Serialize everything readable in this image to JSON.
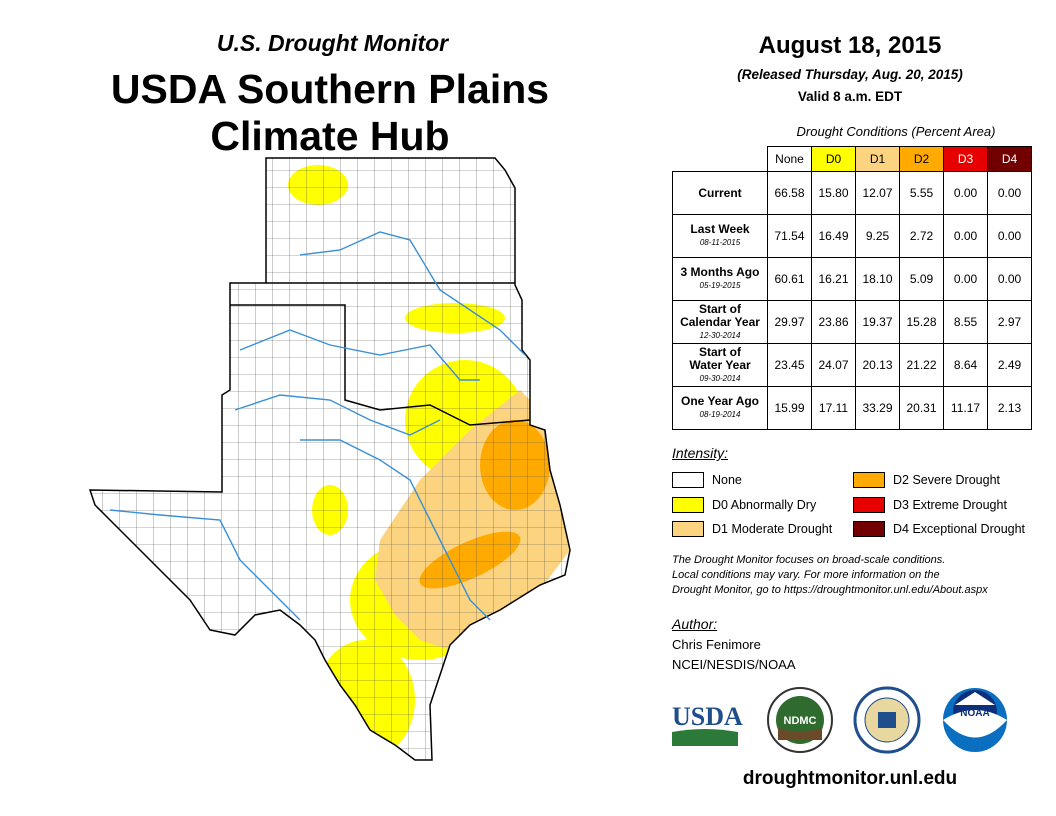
{
  "header": {
    "subtitle": "U.S. Drought Monitor",
    "title_line1": "USDA Southern Plains",
    "title_line2": "Climate Hub",
    "date": "August 18, 2015",
    "released": "(Released Thursday, Aug. 20, 2015)",
    "valid": "Valid 8 a.m. EDT"
  },
  "table": {
    "caption": "Drought Conditions (Percent Area)",
    "columns": [
      "None",
      "D0",
      "D1",
      "D2",
      "D3",
      "D4"
    ],
    "column_colors": [
      "#ffffff",
      "#ffff00",
      "#fcd37f",
      "#ffaa00",
      "#e60000",
      "#730000"
    ],
    "rows": [
      {
        "label": "Current",
        "label2": "",
        "date": "",
        "values": [
          "66.58",
          "15.80",
          "12.07",
          "5.55",
          "0.00",
          "0.00"
        ]
      },
      {
        "label": "Last Week",
        "label2": "",
        "date": "08-11-2015",
        "values": [
          "71.54",
          "16.49",
          "9.25",
          "2.72",
          "0.00",
          "0.00"
        ]
      },
      {
        "label": "3 Months Ago",
        "label2": "",
        "date": "05-19-2015",
        "values": [
          "60.61",
          "16.21",
          "18.10",
          "5.09",
          "0.00",
          "0.00"
        ]
      },
      {
        "label": "Start of",
        "label2": "Calendar Year",
        "date": "12-30-2014",
        "values": [
          "29.97",
          "23.86",
          "19.37",
          "15.28",
          "8.55",
          "2.97"
        ]
      },
      {
        "label": "Start of",
        "label2": "Water Year",
        "date": "09-30-2014",
        "values": [
          "23.45",
          "24.07",
          "20.13",
          "21.22",
          "8.64",
          "2.49"
        ]
      },
      {
        "label": "One Year Ago",
        "label2": "",
        "date": "08-19-2014",
        "values": [
          "15.99",
          "17.11",
          "33.29",
          "20.31",
          "11.17",
          "2.13"
        ]
      }
    ]
  },
  "legend": {
    "heading": "Intensity:",
    "items": [
      {
        "label": "None",
        "color": "#ffffff"
      },
      {
        "label": "D0 Abnormally Dry",
        "color": "#ffff00"
      },
      {
        "label": "D1 Moderate Drought",
        "color": "#fcd37f"
      },
      {
        "label": "D2 Severe Drought",
        "color": "#ffaa00"
      },
      {
        "label": "D3 Extreme Drought",
        "color": "#e60000"
      },
      {
        "label": "D4 Exceptional Drought",
        "color": "#730000"
      }
    ]
  },
  "note": {
    "line1": "The Drought Monitor focuses on broad-scale conditions.",
    "line2": "Local conditions may vary. For more information on the",
    "line3": "Drought Monitor, go to https://droughtmonitor.unl.edu/About.aspx"
  },
  "author": {
    "heading": "Author:",
    "name": "Chris Fenimore",
    "org": "NCEI/NESDIS/NOAA"
  },
  "logos": {
    "usda": "USDA",
    "ndmc": "NDMC",
    "noaa": "NOAA"
  },
  "footer_url": "droughtmonitor.unl.edu"
}
